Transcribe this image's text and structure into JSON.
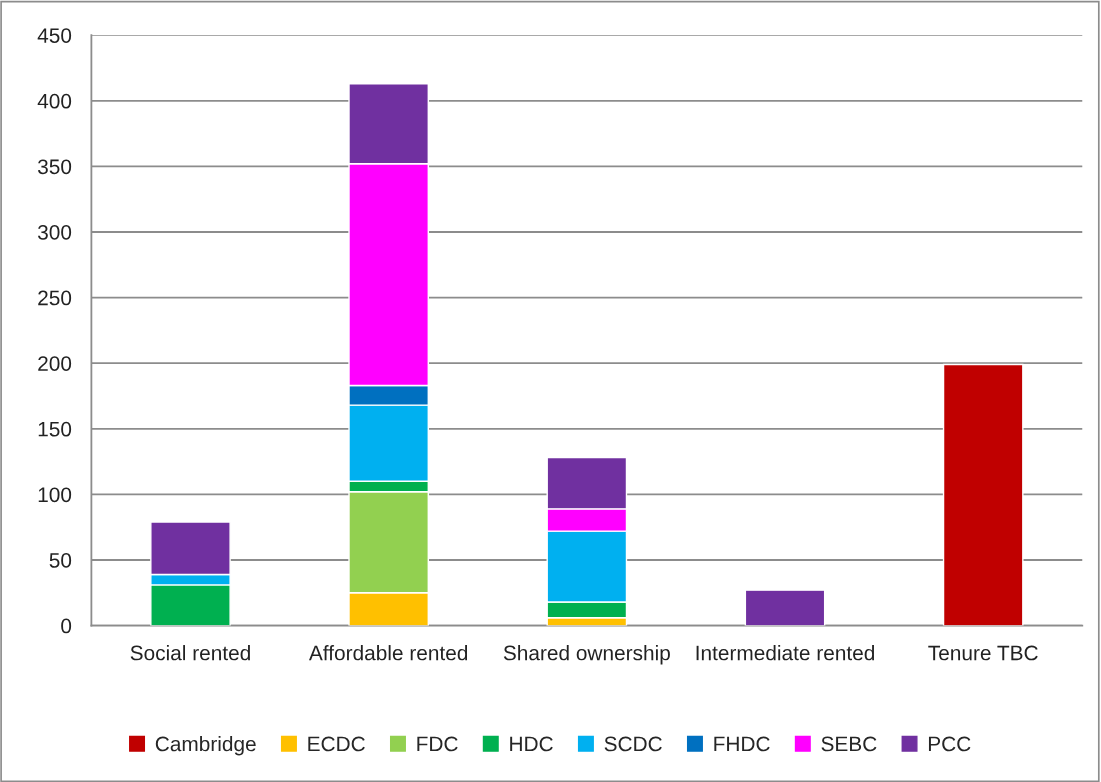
{
  "chart_data": {
    "type": "bar",
    "stacked": true,
    "categories": [
      "Social rented",
      "Affordable rented",
      "Shared ownership",
      "Intermediate rented",
      "Tenure TBC"
    ],
    "series": [
      {
        "name": "Cambridge",
        "color": "#c00000",
        "values": [
          null,
          null,
          null,
          null,
          199
        ]
      },
      {
        "name": "ECDC",
        "color": "#ffc000",
        "values": [
          null,
          25,
          6,
          null,
          null
        ]
      },
      {
        "name": "FDC",
        "color": "#92d050",
        "values": [
          null,
          77,
          null,
          null,
          null
        ]
      },
      {
        "name": "HDC",
        "color": "#00b050",
        "values": [
          31,
          8,
          12,
          null,
          null
        ]
      },
      {
        "name": "SCDC",
        "color": "#00b0f0",
        "values": [
          8,
          58,
          54,
          null,
          null
        ]
      },
      {
        "name": "FHDC",
        "color": "#0070c0",
        "values": [
          null,
          15,
          null,
          null,
          null
        ]
      },
      {
        "name": "SEBC",
        "color": "#ff00ff",
        "values": [
          null,
          169,
          17,
          null,
          null
        ]
      },
      {
        "name": "PCC",
        "color": "#7030a0",
        "values": [
          40,
          61,
          39,
          27,
          null
        ]
      }
    ],
    "ylim": [
      0,
      450
    ],
    "yticks": [
      0,
      50,
      100,
      150,
      200,
      250,
      300,
      350,
      400,
      450
    ],
    "grid": "y",
    "legend": "bottom"
  }
}
